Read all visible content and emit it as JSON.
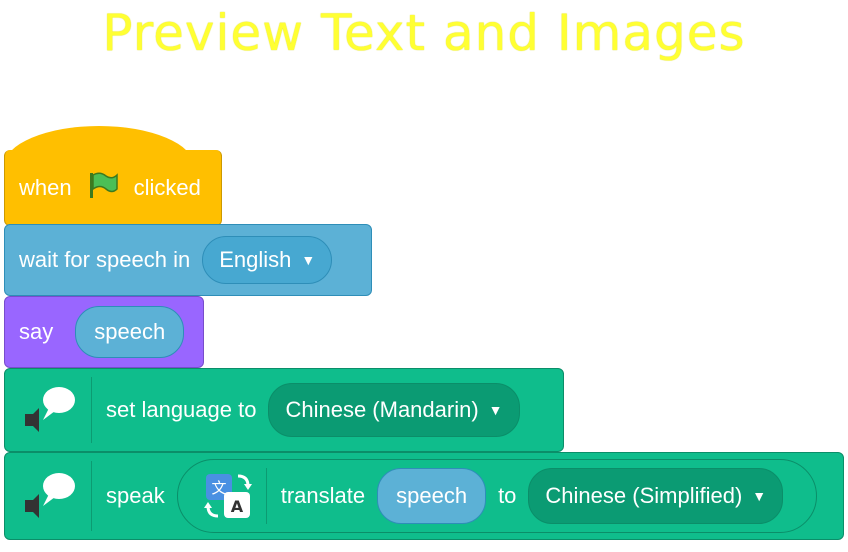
{
  "title": "Preview Text and Images",
  "blocks": {
    "when_clicked": {
      "prefix": "when",
      "suffix": "clicked",
      "icon": "green-flag-icon"
    },
    "wait_speech": {
      "label": "wait for speech in",
      "dropdown": "English"
    },
    "say": {
      "label": "say",
      "reporter": "speech"
    },
    "set_language": {
      "label": "set language to",
      "dropdown": "Chinese (Mandarin)",
      "icon": "speech-bubble-speaker-icon"
    },
    "speak": {
      "label": "speak",
      "icon": "speech-bubble-speaker-icon",
      "translate": {
        "icon": "translate-icon",
        "label": "translate",
        "reporter": "speech",
        "to_label": "to",
        "dropdown": "Chinese (Simplified)"
      }
    }
  },
  "colors": {
    "events": "#ffbf00",
    "sensing": "#5cb1d6",
    "looks": "#9966ff",
    "tts": "#0fbd8c",
    "title": "#ffff33"
  }
}
